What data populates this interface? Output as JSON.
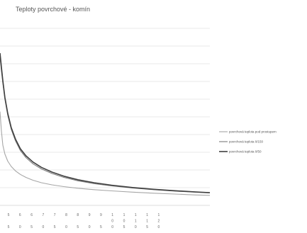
{
  "chart_data": {
    "type": "line",
    "title": "Teploty povrchové - komín",
    "xlabel": "",
    "ylabel": "",
    "grid": true,
    "legend_position": "right",
    "x_tick_labels": [
      [
        "5",
        "",
        "5"
      ],
      [
        "6",
        "",
        "0"
      ],
      [
        "6",
        "",
        "5"
      ],
      [
        "7",
        "",
        "0"
      ],
      [
        "7",
        "",
        "5"
      ],
      [
        "8",
        "",
        "0"
      ],
      [
        "8",
        "",
        "5"
      ],
      [
        "9",
        "",
        "0"
      ],
      [
        "9",
        "",
        "5"
      ],
      [
        "1",
        "0",
        "0"
      ],
      [
        "1",
        "0",
        "5"
      ],
      [
        "1",
        "1",
        "0"
      ],
      [
        "1",
        "1",
        "5"
      ],
      [
        "1",
        "2",
        "0"
      ]
    ],
    "x": [
      1,
      3,
      5,
      8,
      12,
      17,
      23,
      30,
      38,
      48,
      60,
      75,
      92,
      112,
      135,
      160,
      190,
      220,
      250,
      280,
      300
    ],
    "ylim": [
      0,
      100
    ],
    "series": [
      {
        "name": "povrchová teplota pod prostupem",
        "color": "#a6a6a6",
        "width": 1.1,
        "values": [
          53,
          42,
          34,
          29,
          25,
          22,
          19.5,
          17.5,
          15.8,
          14.2,
          12.8,
          11.6,
          10.6,
          9.7,
          8.9,
          8.2,
          7.5,
          6.9,
          6.4,
          5.9,
          5.7
        ]
      },
      {
        "name": "povrchová teplota 0/150",
        "color": "#7a7a7a",
        "width": 1.1,
        "values": [
          84,
          76,
          69,
          60,
          51,
          43,
          36.5,
          31,
          27,
          23.5,
          20.6,
          18,
          15.8,
          13.9,
          12.3,
          11,
          9.8,
          8.9,
          8.1,
          7.4,
          7
        ]
      },
      {
        "name": "povrchová teplota 0/50",
        "color": "#404040",
        "width": 1.6,
        "values": [
          86,
          78,
          70.5,
          61,
          52,
          44,
          37.5,
          32,
          28,
          24.5,
          21.5,
          18.8,
          16.5,
          14.5,
          12.8,
          11.4,
          10.1,
          9.1,
          8.3,
          7.6,
          7.2
        ]
      }
    ]
  }
}
